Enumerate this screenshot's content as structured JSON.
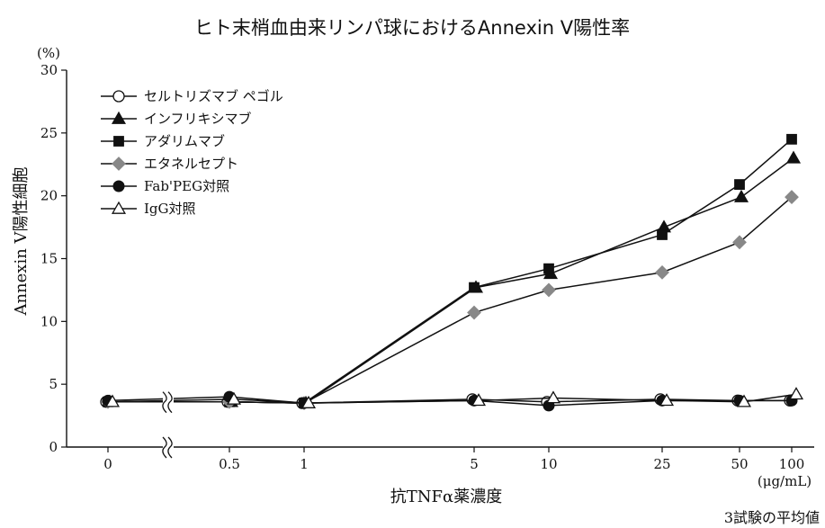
{
  "chart_data": {
    "type": "line",
    "title": "ヒト末梢血由来リンパ球におけるAnnexin V陽性率",
    "xlabel": "抗TNFα薬濃度",
    "x_unit": "(μg/mL)",
    "ylabel": "Annexin V陽性細胞",
    "y_unit": "(%)",
    "ylim": [
      0,
      30
    ],
    "yticks": [
      "0",
      "5",
      "10",
      "15",
      "20",
      "25",
      "30"
    ],
    "categories": [
      "0",
      "0.5",
      "1",
      "5",
      "10",
      "25",
      "50",
      "100"
    ],
    "x_axis_break": true,
    "legend_position": "top-left",
    "footnote": "3試験の平均値",
    "series": [
      {
        "name": "セルトリズマブ ペゴル",
        "marker": "circle-open",
        "color": "#111111",
        "values": [
          3.6,
          3.6,
          3.5,
          3.8,
          3.6,
          3.8,
          3.7,
          3.7
        ]
      },
      {
        "name": "インフリキシマブ",
        "marker": "triangle-filled",
        "color": "#111111",
        "values": [
          3.6,
          3.6,
          3.5,
          12.7,
          13.8,
          17.5,
          19.9,
          23.0
        ]
      },
      {
        "name": "アダリムマブ",
        "marker": "square-filled",
        "color": "#111111",
        "values": [
          3.6,
          3.6,
          3.5,
          12.7,
          14.2,
          16.9,
          20.9,
          24.5
        ]
      },
      {
        "name": "エタネルセプト",
        "marker": "diamond-filled",
        "color": "#888888",
        "values": [
          3.6,
          3.6,
          3.5,
          10.7,
          12.5,
          13.9,
          16.3,
          19.9
        ]
      },
      {
        "name": "Fab'PEG対照",
        "marker": "circle-filled",
        "color": "#111111",
        "values": [
          3.7,
          4.0,
          3.5,
          3.7,
          3.3,
          3.7,
          3.7,
          3.7
        ]
      },
      {
        "name": "IgG対照",
        "marker": "triangle-open",
        "color": "#111111",
        "values": [
          3.6,
          3.8,
          3.5,
          3.7,
          3.9,
          3.7,
          3.6,
          4.2
        ]
      }
    ]
  }
}
